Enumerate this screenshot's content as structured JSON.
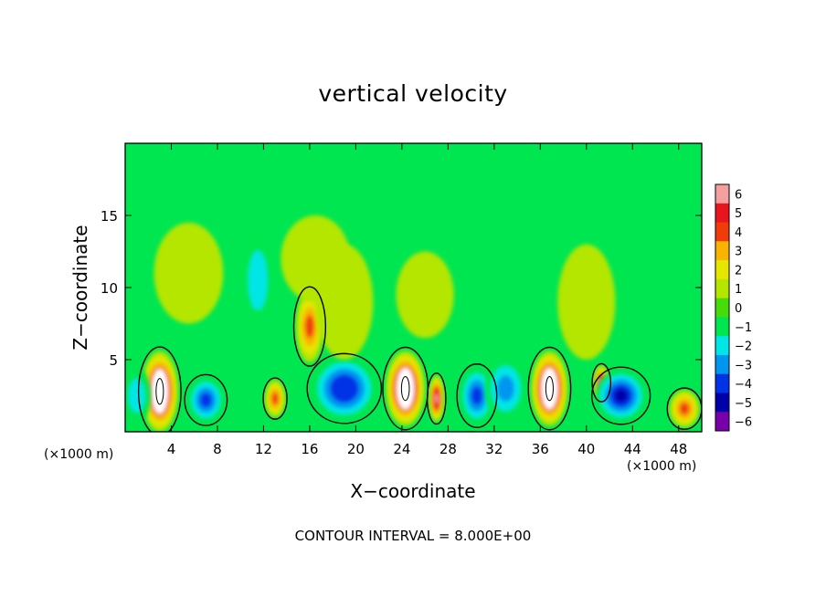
{
  "chart_data": {
    "type": "heatmap",
    "title": "vertical velocity",
    "xlabel": "X−coordinate",
    "ylabel": "Z−coordinate",
    "x_unit_left": "(×1000 m)",
    "x_unit_right": "(×1000 m)",
    "footer": "CONTOUR INTERVAL = 8.000E+00",
    "xlim": [
      0,
      50
    ],
    "ylim": [
      0,
      20
    ],
    "xticks": [
      4,
      8,
      12,
      16,
      20,
      24,
      28,
      32,
      36,
      40,
      44,
      48
    ],
    "yticks": [
      5,
      10,
      15
    ],
    "colorbar": {
      "levels": [
        6,
        5,
        4,
        3,
        2,
        1,
        0,
        -1,
        -2,
        -3,
        -4,
        -5,
        -6
      ],
      "level_labels": [
        "6",
        "5",
        "4",
        "3",
        "2",
        "1",
        "0",
        "−1",
        "−2",
        "−3",
        "−4",
        "−5",
        "−6"
      ],
      "colors": [
        "#f4a0a0",
        "#e8141e",
        "#f03c0a",
        "#f8b400",
        "#e6e600",
        "#b4e600",
        "#46dc0a",
        "#00e650",
        "#00e6e6",
        "#0096f0",
        "#0032e6",
        "#0000aa",
        "#7800aa"
      ]
    },
    "features": [
      {
        "x": 3.0,
        "z": 2.8,
        "value": 6.5,
        "rx": 1.6,
        "rz": 2.8
      },
      {
        "x": 24.3,
        "z": 3.0,
        "value": 6.5,
        "rx": 1.7,
        "rz": 2.6
      },
      {
        "x": 36.8,
        "z": 3.0,
        "value": 6.5,
        "rx": 1.6,
        "rz": 2.6
      },
      {
        "x": 27.0,
        "z": 2.3,
        "value": 5.5,
        "rx": 0.7,
        "rz": 1.6
      },
      {
        "x": 41.3,
        "z": 3.4,
        "value": 5.5,
        "rx": 0.7,
        "rz": 1.2
      },
      {
        "x": 16.0,
        "z": 7.3,
        "value": 4.0,
        "rx": 1.2,
        "rz": 2.5
      },
      {
        "x": 13.0,
        "z": 2.3,
        "value": 4.0,
        "rx": 0.9,
        "rz": 1.3
      },
      {
        "x": 48.5,
        "z": 1.6,
        "value": 4.0,
        "rx": 1.3,
        "rz": 1.3
      },
      {
        "x": 7.0,
        "z": 2.2,
        "value": -4.0,
        "rx": 1.6,
        "rz": 1.6
      },
      {
        "x": 19.0,
        "z": 3.0,
        "value": -4.5,
        "rx": 2.8,
        "rz": 2.2
      },
      {
        "x": 30.5,
        "z": 2.5,
        "value": -4.0,
        "rx": 1.5,
        "rz": 2.0
      },
      {
        "x": 43.0,
        "z": 2.5,
        "value": -5.0,
        "rx": 2.2,
        "rz": 1.8
      },
      {
        "x": 33.0,
        "z": 3.0,
        "value": -3.0,
        "rx": 1.8,
        "rz": 2.2
      },
      {
        "x": 11.5,
        "z": 10.5,
        "value": -2.0,
        "rx": 1.4,
        "rz": 3.5
      },
      {
        "x": 5.5,
        "z": 11.0,
        "value": 1.0,
        "rx": 3.0,
        "rz": 3.5
      },
      {
        "x": 16.5,
        "z": 12.0,
        "value": 1.0,
        "rx": 3.0,
        "rz": 3.0
      },
      {
        "x": 19.0,
        "z": 9.0,
        "value": 1.0,
        "rx": 2.5,
        "rz": 4.0
      },
      {
        "x": 40.0,
        "z": 9.0,
        "value": 1.0,
        "rx": 2.5,
        "rz": 4.0
      },
      {
        "x": 26.0,
        "z": 9.5,
        "value": 1.0,
        "rx": 2.5,
        "rz": 3.0
      },
      {
        "x": 1.0,
        "z": 2.5,
        "value": -2.0,
        "rx": 1.2,
        "rz": 2.0
      }
    ]
  }
}
